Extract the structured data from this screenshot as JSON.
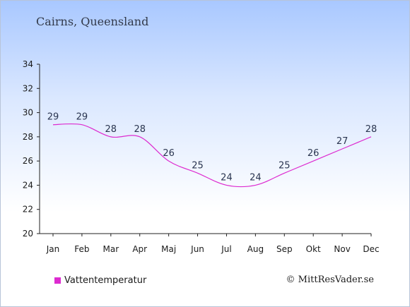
{
  "header": {
    "title": "Cairns, Queensland"
  },
  "credit": "© MittResVader.se",
  "colors": {
    "line": "#dd2bd0",
    "axis": "#222222"
  },
  "chart_data": {
    "type": "line",
    "categories": [
      "Jan",
      "Feb",
      "Mar",
      "Apr",
      "Maj",
      "Jun",
      "Jul",
      "Aug",
      "Sep",
      "Okt",
      "Nov",
      "Dec"
    ],
    "series": [
      {
        "name": "Vattentemperatur",
        "values": [
          29,
          29,
          28,
          28,
          26,
          25,
          24,
          24,
          25,
          26,
          27,
          28
        ]
      }
    ],
    "ylim": [
      20,
      34
    ],
    "yticks": [
      20,
      22,
      24,
      26,
      28,
      30,
      32,
      34
    ],
    "grid": false,
    "legend": "bottom-left"
  }
}
